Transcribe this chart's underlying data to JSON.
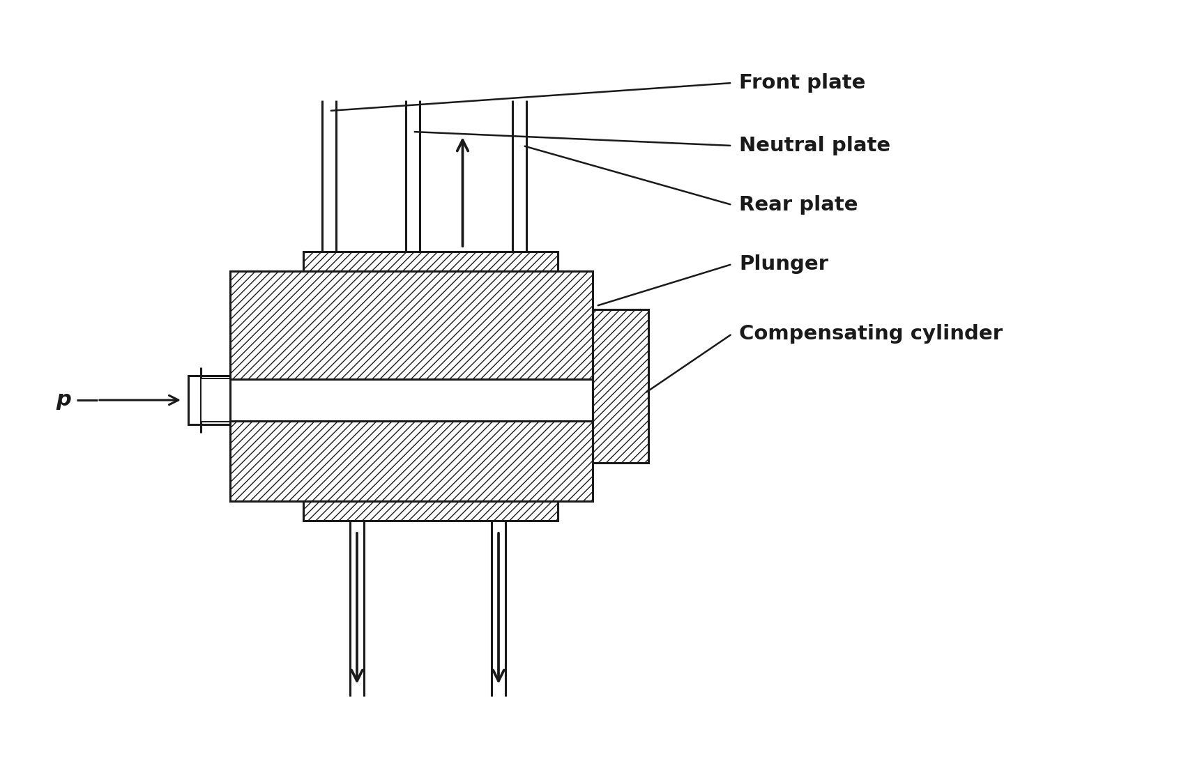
{
  "line_color": "#1a1a1a",
  "lw": 2.2,
  "lw_thin": 1.4,
  "labels": {
    "front_plate": "Front plate",
    "neutral_plate": "Neutral plate",
    "rear_plate": "Rear plate",
    "plunger": "Plunger",
    "comp_cyl": "Compensating cylinder",
    "p_label": "p"
  },
  "label_fontsize": 21,
  "label_fontweight": "bold",
  "p_fontsize": 22
}
